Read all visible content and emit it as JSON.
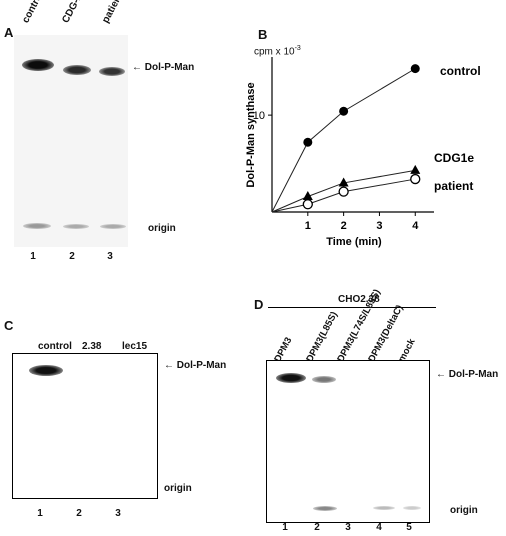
{
  "panels": {
    "A": {
      "letter": "A",
      "lanes": [
        "control",
        "CDG-Ie",
        "patient"
      ],
      "lane_numbers": [
        "1",
        "2",
        "3"
      ],
      "product_label": "Dol-P-Man",
      "origin_label": "origin"
    },
    "B": {
      "letter": "B",
      "unit_prefix": "cpm x 10",
      "unit_exponent": "-3",
      "ylabel": "Dol-P-Man synthase",
      "xlabel": "Time (min)",
      "x_ticks": [
        "1",
        "2",
        "3",
        "4"
      ],
      "y_tick": "10",
      "series_labels": [
        "control",
        "CDG1e",
        "patient"
      ]
    },
    "C": {
      "letter": "C",
      "lanes": [
        "control",
        "2.38",
        "lec15"
      ],
      "lane_numbers": [
        "1",
        "2",
        "3"
      ],
      "product_label": "Dol-P-Man",
      "origin_label": "origin"
    },
    "D": {
      "letter": "D",
      "cell_line": "CHO2.38",
      "lanes": [
        "DPM3",
        "DPM3(L85S)",
        "DPM3(L74S/L85S)",
        "DPM3(DeltaC)",
        "mock"
      ],
      "lane_numbers": [
        "1",
        "2",
        "3",
        "4",
        "5"
      ],
      "product_label": "Dol-P-Man",
      "origin_label": "origin"
    }
  },
  "chart_data": {
    "type": "line",
    "xlabel": "Time (min)",
    "ylabel": "Dol-P-Man synthase",
    "xlim": [
      0,
      4.3
    ],
    "ylim": [
      0,
      16
    ],
    "x_ticks": [
      1,
      2,
      3,
      4
    ],
    "y_ticks": [
      10
    ],
    "series": [
      {
        "name": "control",
        "marker": "filled-circle",
        "x": [
          0,
          1,
          2,
          4
        ],
        "y": [
          0,
          7.2,
          10.4,
          14.8
        ]
      },
      {
        "name": "CDG1e",
        "marker": "filled-triangle",
        "x": [
          0,
          1,
          2,
          4
        ],
        "y": [
          0,
          1.6,
          3.0,
          4.3
        ]
      },
      {
        "name": "patient",
        "marker": "open-circle",
        "x": [
          0,
          1,
          2,
          4
        ],
        "y": [
          0,
          0.8,
          2.1,
          3.4
        ]
      }
    ]
  }
}
